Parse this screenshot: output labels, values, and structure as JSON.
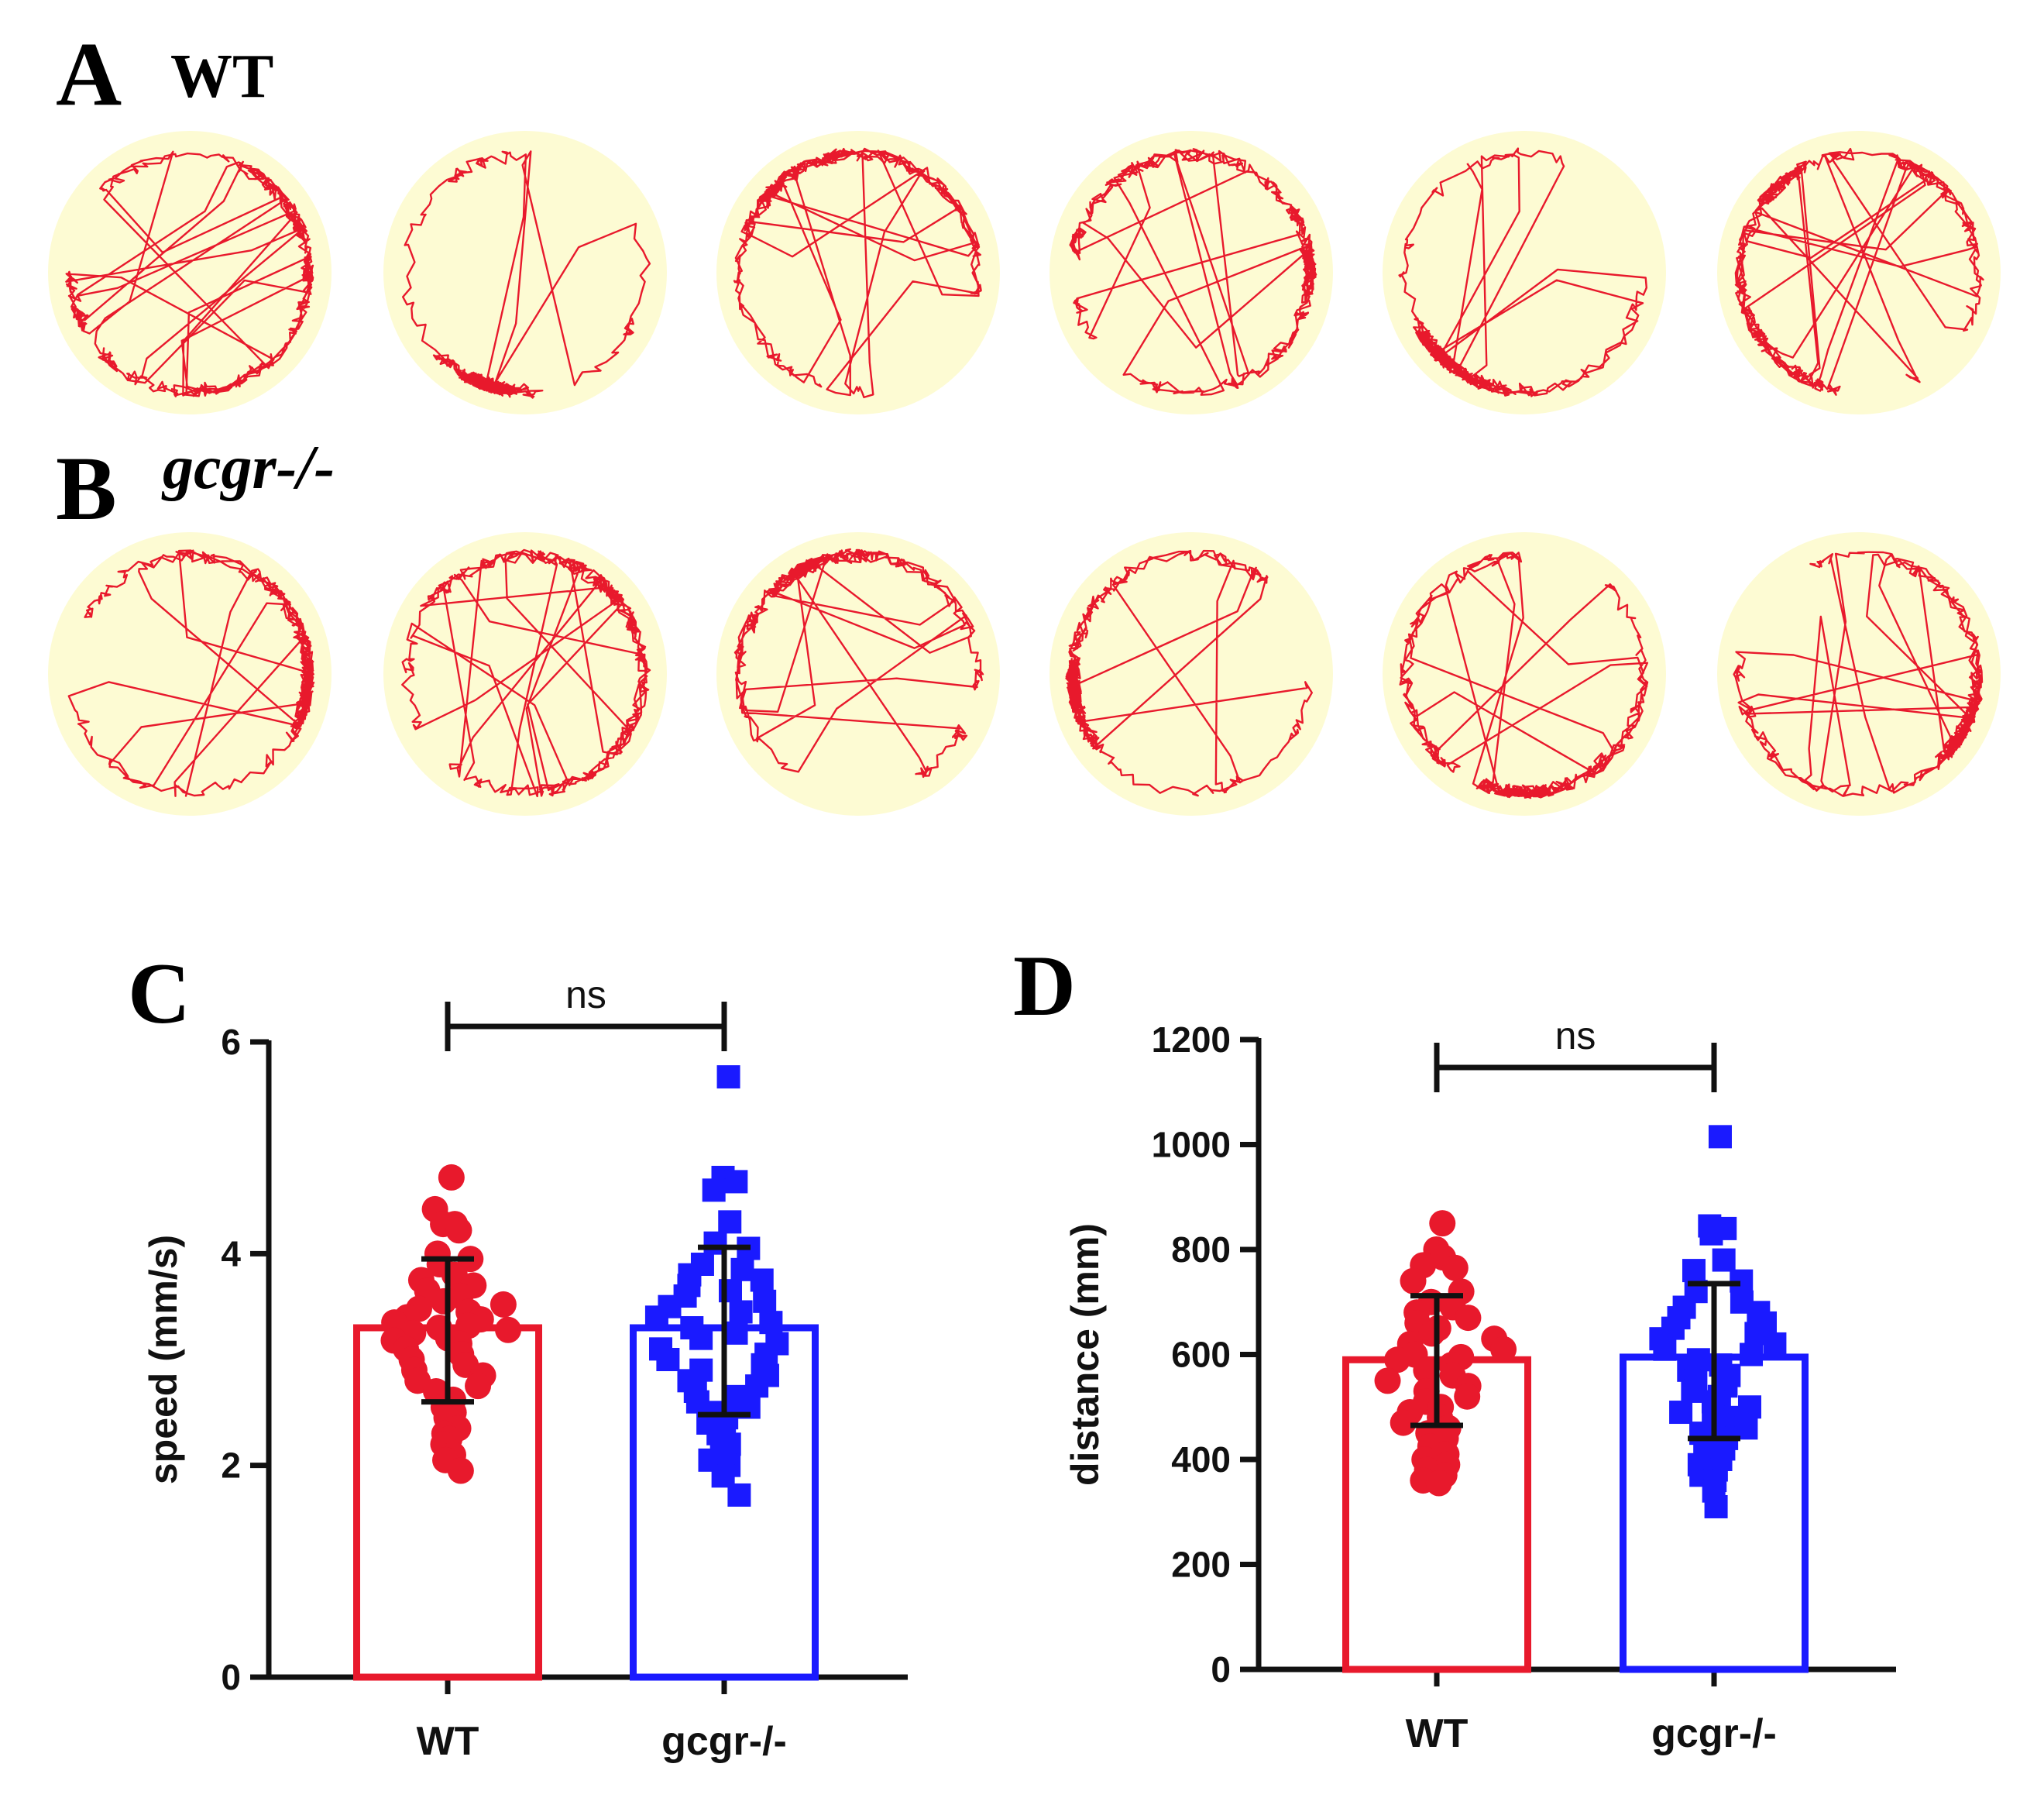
{
  "panels": {
    "A": {
      "letter": "A",
      "group": "WT",
      "arena_count": 6
    },
    "B": {
      "letter": "B",
      "group": "gcgr-/-",
      "arena_count": 6
    }
  },
  "colors": {
    "wt": "#e8192c",
    "gcgr": "#1a1aff",
    "track": "#e8192c",
    "arena": "#fdfbd3",
    "axis": "#111111"
  },
  "chart_data": [
    {
      "panel_letter": "C",
      "type": "bar",
      "categories": [
        "WT",
        "gcgr-/-"
      ],
      "ylabel": "speed (mm/s)",
      "ylim": [
        0,
        6
      ],
      "yticks": [
        0,
        2,
        4,
        6
      ],
      "significance": "ns",
      "series": [
        {
          "name": "WT",
          "marker": "circle",
          "mean": 3.3,
          "sd_low": 2.6,
          "sd_high": 3.95,
          "points": [
            4.72,
            4.42,
            4.28,
            4.28,
            4.22,
            4.0,
            3.95,
            3.9,
            3.8,
            3.75,
            3.7,
            3.65,
            3.6,
            3.55,
            3.52,
            3.48,
            3.45,
            3.4,
            3.38,
            3.35,
            3.32,
            3.3,
            3.28,
            3.25,
            3.2,
            3.18,
            3.15,
            3.1,
            3.05,
            3.0,
            2.95,
            2.9,
            2.85,
            2.8,
            2.75,
            2.7,
            2.62,
            2.55,
            2.5,
            2.45,
            2.35,
            2.3,
            2.25,
            2.2,
            2.1,
            2.05,
            1.95
          ]
        },
        {
          "name": "gcgr-/-",
          "marker": "square",
          "mean": 3.3,
          "sd_low": 2.48,
          "sd_high": 4.06,
          "points": [
            5.67,
            4.72,
            4.68,
            4.6,
            4.3,
            4.1,
            4.05,
            3.9,
            3.85,
            3.8,
            3.75,
            3.7,
            3.65,
            3.6,
            3.55,
            3.5,
            3.45,
            3.4,
            3.35,
            3.3,
            3.25,
            3.2,
            3.15,
            3.1,
            3.05,
            3.0,
            2.95,
            2.9,
            2.85,
            2.8,
            2.75,
            2.7,
            2.65,
            2.6,
            2.55,
            2.5,
            2.45,
            2.4,
            2.35,
            2.3,
            2.2,
            2.15,
            2.1,
            2.05,
            2.0,
            1.9,
            1.72
          ]
        }
      ]
    },
    {
      "panel_letter": "D",
      "type": "bar",
      "categories": [
        "WT",
        "gcgr-/-"
      ],
      "ylabel": "distance (mm)",
      "ylim": [
        0,
        1200
      ],
      "yticks": [
        0,
        200,
        400,
        600,
        800,
        1000,
        1200
      ],
      "significance": "ns",
      "series": [
        {
          "name": "WT",
          "marker": "circle",
          "mean": 590,
          "sd_low": 465,
          "sd_high": 712,
          "points": [
            850,
            800,
            785,
            770,
            765,
            740,
            720,
            700,
            690,
            680,
            670,
            660,
            650,
            640,
            630,
            620,
            610,
            600,
            595,
            590,
            580,
            570,
            560,
            550,
            540,
            530,
            520,
            510,
            500,
            490,
            480,
            470,
            460,
            450,
            440,
            425,
            410,
            400,
            390,
            380,
            370,
            360,
            355
          ]
        },
        {
          "name": "gcgr-/-",
          "marker": "square",
          "mean": 595,
          "sd_low": 440,
          "sd_high": 735,
          "points": [
            1015,
            845,
            840,
            830,
            780,
            760,
            740,
            720,
            700,
            690,
            680,
            670,
            660,
            650,
            640,
            630,
            620,
            610,
            600,
            590,
            580,
            570,
            560,
            550,
            540,
            530,
            520,
            510,
            500,
            490,
            480,
            470,
            460,
            450,
            440,
            430,
            420,
            410,
            400,
            390,
            380,
            370,
            360,
            340,
            310
          ]
        }
      ]
    }
  ]
}
